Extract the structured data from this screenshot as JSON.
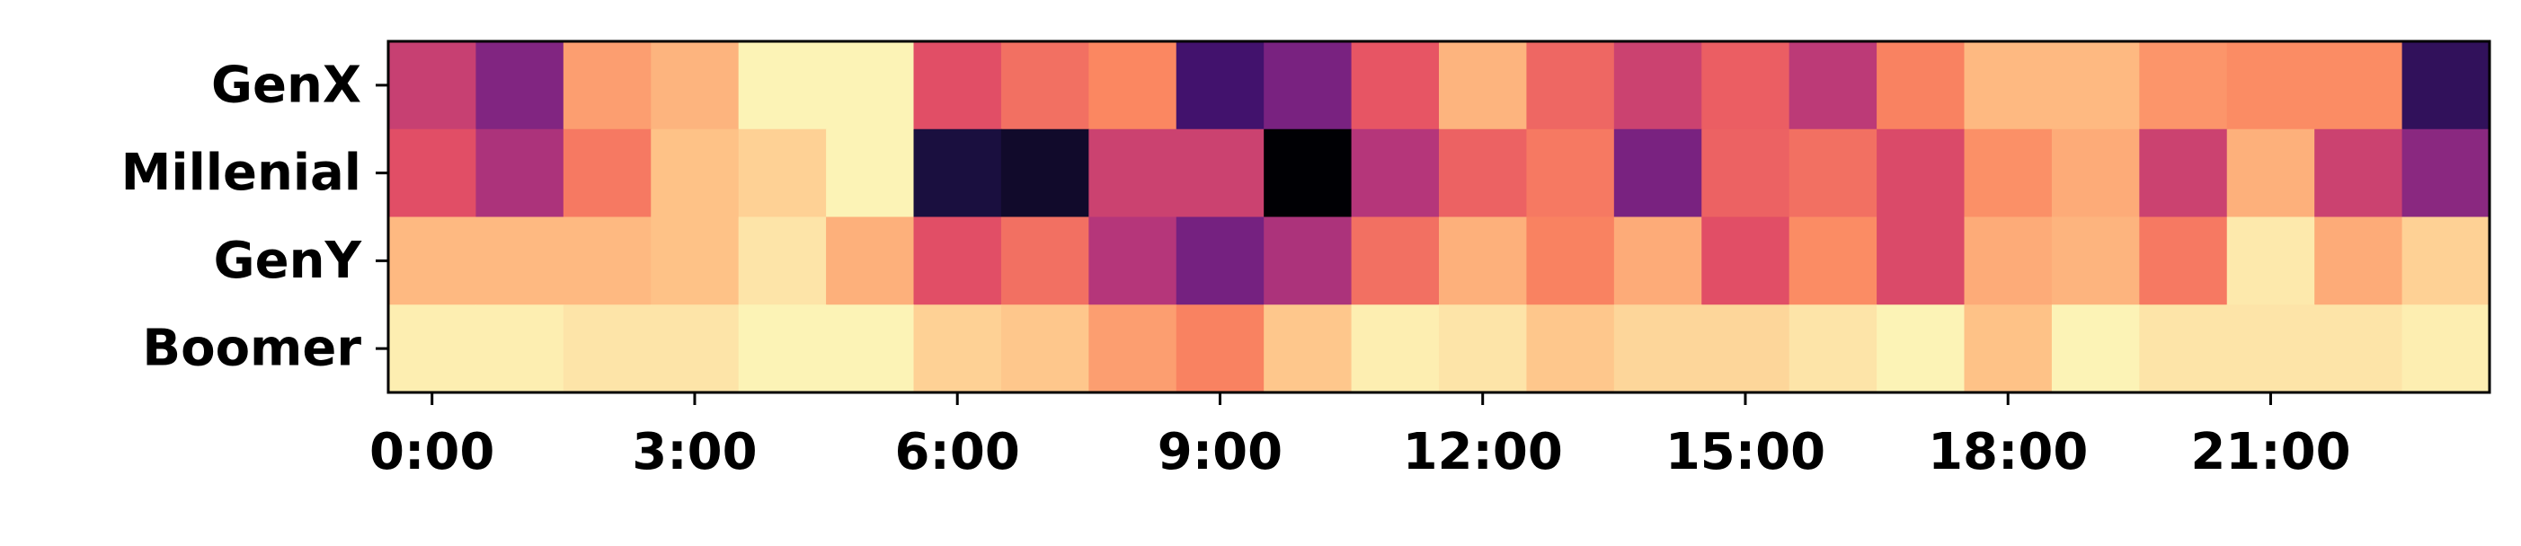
{
  "chart_data": {
    "type": "heatmap",
    "title": "",
    "xlabel": "",
    "ylabel": "",
    "colormap": "magma",
    "rows": [
      "GenX",
      "Millenial",
      "GenY",
      "Boomer"
    ],
    "x_hours": [
      0,
      1,
      2,
      3,
      4,
      5,
      6,
      7,
      8,
      9,
      10,
      11,
      12,
      13,
      14,
      15,
      16,
      17,
      18,
      19,
      20,
      21,
      22,
      23
    ],
    "x_tick_hours": [
      0,
      3,
      6,
      9,
      12,
      15,
      18,
      21
    ],
    "x_tick_labels": [
      "0:00",
      "3:00",
      "6:00",
      "9:00",
      "12:00",
      "15:00",
      "18:00",
      "21:00"
    ],
    "value_range": [
      0,
      1
    ],
    "values": [
      [
        0.55,
        0.38,
        0.8,
        0.85,
        0.98,
        0.98,
        0.62,
        0.7,
        0.75,
        0.22,
        0.36,
        0.64,
        0.85,
        0.68,
        0.56,
        0.66,
        0.52,
        0.74,
        0.86,
        0.86,
        0.78,
        0.76,
        0.76,
        0.18
      ],
      [
        0.62,
        0.48,
        0.72,
        0.88,
        0.91,
        0.98,
        0.12,
        0.08,
        0.56,
        0.56,
        0.0,
        0.5,
        0.67,
        0.72,
        0.36,
        0.67,
        0.7,
        0.6,
        0.77,
        0.83,
        0.56,
        0.84,
        0.56,
        0.4
      ],
      [
        0.86,
        0.86,
        0.86,
        0.88,
        0.95,
        0.84,
        0.62,
        0.7,
        0.5,
        0.35,
        0.48,
        0.7,
        0.84,
        0.74,
        0.83,
        0.62,
        0.76,
        0.6,
        0.83,
        0.85,
        0.72,
        0.96,
        0.83,
        0.91
      ],
      [
        0.97,
        0.97,
        0.95,
        0.95,
        0.98,
        0.98,
        0.91,
        0.89,
        0.8,
        0.74,
        0.89,
        0.97,
        0.95,
        0.89,
        0.92,
        0.92,
        0.95,
        0.98,
        0.88,
        0.98,
        0.95,
        0.95,
        0.95,
        0.97
      ]
    ]
  }
}
